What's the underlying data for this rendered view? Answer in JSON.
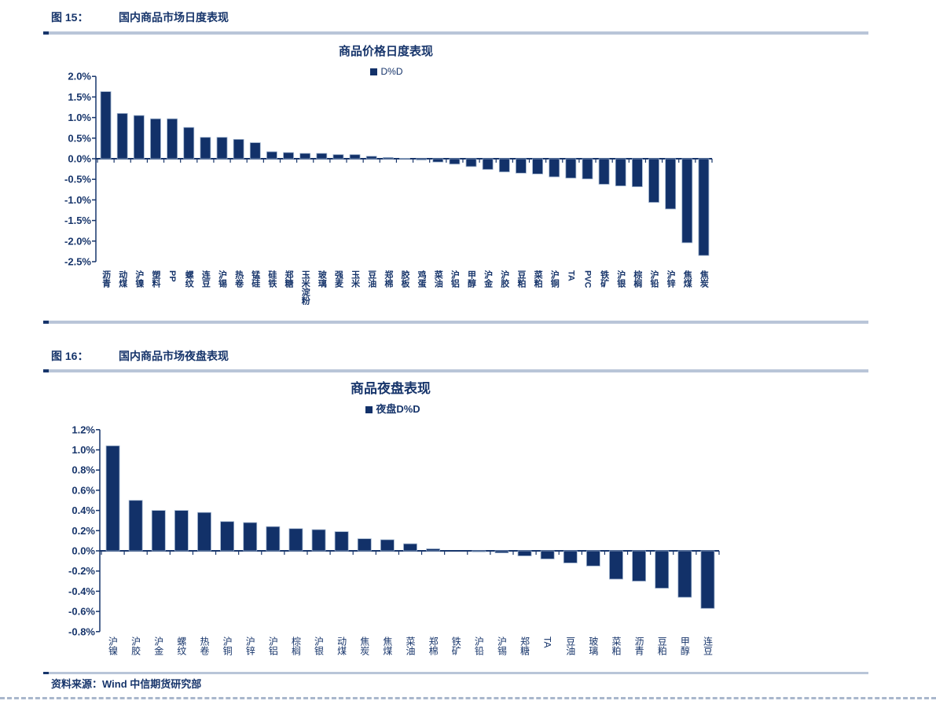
{
  "colors": {
    "navy": "#17356b",
    "bar_fill": "#123169",
    "bar_stroke": "#9db1cc",
    "rule": "#b9c5d8",
    "dashed_line": "#a9b7cc"
  },
  "figure15": {
    "tag": "图 15：",
    "caption": "国内商品市场日度表现"
  },
  "figure16": {
    "tag": "图 16：",
    "caption": "国内商品市场夜盘表现"
  },
  "footer": {
    "source": "资料来源：Wind  中信期货研究部"
  },
  "chart_data": [
    {
      "type": "bar",
      "title": "商品价格日度表现",
      "legend": "D%D",
      "legend_position": "top",
      "grid": false,
      "ylim": [
        -2.5,
        2.0
      ],
      "ytick_step": 0.5,
      "ytick_format": "percent_1dp",
      "categories": [
        "沥青",
        "动煤",
        "沪镍",
        "塑料",
        "PP",
        "螺纹",
        "连豆",
        "沪锡",
        "热卷",
        "锰硅",
        "硅铁",
        "郑糖",
        "玉米淀粉",
        "玻璃",
        "强麦",
        "玉米",
        "豆油",
        "郑棉",
        "胶板",
        "鸡蛋",
        "菜油",
        "沪铝",
        "甲醇",
        "沪金",
        "沪胶",
        "豆粕",
        "菜粕",
        "沪铜",
        "TA",
        "PVC",
        "铁矿",
        "沪银",
        "棕榈",
        "沪铅",
        "沪锌",
        "焦煤",
        "焦炭"
      ],
      "values": [
        1.63,
        1.1,
        1.05,
        0.97,
        0.97,
        0.76,
        0.52,
        0.52,
        0.47,
        0.39,
        0.17,
        0.15,
        0.13,
        0.13,
        0.1,
        0.1,
        0.06,
        0.03,
        0.01,
        -0.03,
        -0.08,
        -0.13,
        -0.19,
        -0.26,
        -0.32,
        -0.35,
        -0.37,
        -0.44,
        -0.47,
        -0.49,
        -0.62,
        -0.66,
        -0.68,
        -1.06,
        -1.22,
        -2.04,
        -2.35
      ]
    },
    {
      "type": "bar",
      "title": "商品夜盘表现",
      "legend": "夜盘D%D",
      "legend_position": "top",
      "grid": false,
      "ylim": [
        -0.8,
        1.2
      ],
      "ytick_step": 0.2,
      "ytick_format": "percent_1dp",
      "categories": [
        "沪镍",
        "沪胶",
        "沪金",
        "螺纹",
        "热卷",
        "沪铜",
        "沪锌",
        "沪铝",
        "棕榈",
        "沪银",
        "动煤",
        "焦炭",
        "焦煤",
        "菜油",
        "郑棉",
        "铁矿",
        "沪铅",
        "沪锡",
        "郑糖",
        "TA",
        "豆油",
        "玻璃",
        "菜粕",
        "沥青",
        "豆粕",
        "甲醇",
        "连豆"
      ],
      "values": [
        1.04,
        0.5,
        0.4,
        0.4,
        0.38,
        0.29,
        0.28,
        0.24,
        0.22,
        0.21,
        0.19,
        0.12,
        0.11,
        0.07,
        0.02,
        0.0,
        -0.01,
        -0.02,
        -0.05,
        -0.08,
        -0.12,
        -0.15,
        -0.28,
        -0.3,
        -0.37,
        -0.46,
        -0.57
      ]
    }
  ]
}
